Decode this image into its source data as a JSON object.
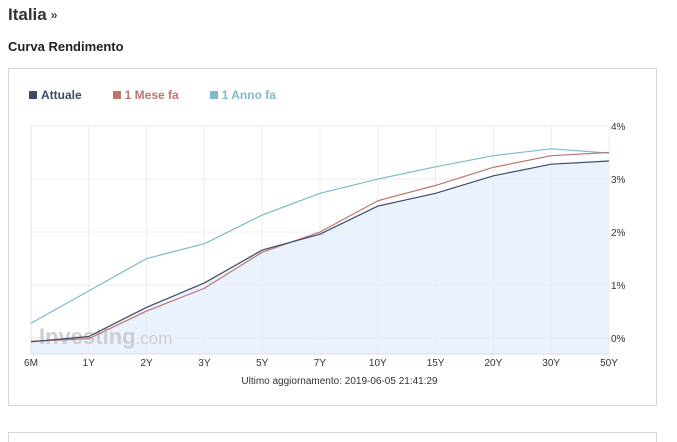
{
  "header": {
    "country": "Italia",
    "chevron": "»",
    "section_title": "Curva Rendimento"
  },
  "legend": [
    {
      "label": "Attuale",
      "color": "#3f4a6b"
    },
    {
      "label": "1 Mese fa",
      "color": "#c0756c"
    },
    {
      "label": "1 Anno fa",
      "color": "#7fb9cc"
    }
  ],
  "watermark": {
    "brand": "Investing",
    "suffix": ".com"
  },
  "footer": {
    "last_update": "Ultimo aggiornamento: 2019-06-05 21:41:29"
  },
  "chart_data": {
    "type": "line",
    "x": [
      "6M",
      "1Y",
      "2Y",
      "3Y",
      "5Y",
      "7Y",
      "10Y",
      "15Y",
      "20Y",
      "30Y",
      "50Y"
    ],
    "yticks": [
      "4%",
      "3%",
      "2%",
      "1%",
      "0%"
    ],
    "ylim": [
      -0.3,
      4
    ],
    "y_axis_side": "right",
    "grid": true,
    "series": [
      {
        "name": "Attuale",
        "color": "#3f4a6b",
        "fill": "#eaf3fd",
        "values": [
          -0.07,
          0.03,
          0.58,
          1.04,
          1.66,
          1.96,
          2.49,
          2.73,
          3.06,
          3.28,
          3.34
        ]
      },
      {
        "name": "1 Mese fa",
        "color": "#c0756c",
        "values": [
          -0.06,
          -0.01,
          0.51,
          0.94,
          1.62,
          2.0,
          2.59,
          2.88,
          3.22,
          3.44,
          3.5
        ]
      },
      {
        "name": "1 Anno fa",
        "color": "#7fb9cc",
        "values": [
          0.28,
          0.89,
          1.5,
          1.78,
          2.32,
          2.73,
          3.0,
          3.23,
          3.44,
          3.57,
          3.49
        ]
      }
    ]
  }
}
